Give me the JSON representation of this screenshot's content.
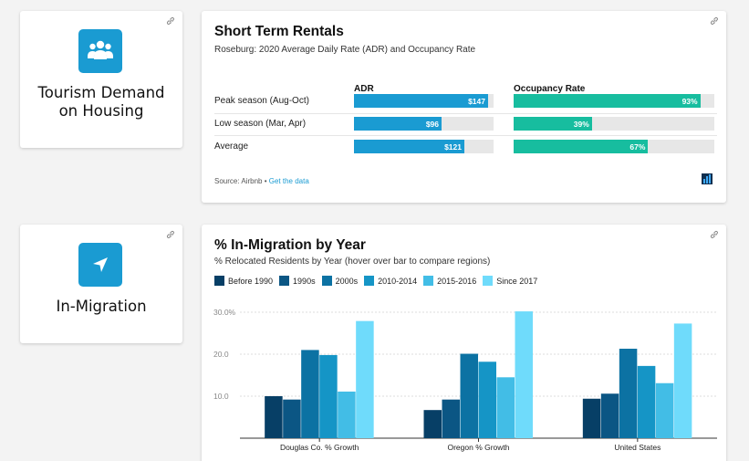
{
  "colors": {
    "adr": "#1a9bd2",
    "occupancy": "#17bd9f",
    "track": "#e7e7e7",
    "accent": "#1a9bd2"
  },
  "tiles": [
    {
      "icon": "users-icon",
      "title_line1": "Tourism Demand",
      "title_line2": "on Housing"
    },
    {
      "icon": "navigation-arrow-icon",
      "title": "In-Migration"
    }
  ],
  "rentals": {
    "title": "Short Term Rentals",
    "subtitle": "Roseburg: 2020 Average Daily Rate (ADR) and Occupancy Rate",
    "col_adr": "ADR",
    "col_occ": "Occupancy Rate",
    "rows": [
      {
        "label": "Peak season (Aug-Oct)",
        "adr": 147,
        "adr_label": "$147",
        "occ": 93,
        "occ_label": "93%"
      },
      {
        "label": "Low season (Mar, Apr)",
        "adr": 96,
        "adr_label": "$96",
        "occ": 39,
        "occ_label": "39%"
      },
      {
        "label": "Average",
        "adr": 121,
        "adr_label": "$121",
        "occ": 67,
        "occ_label": "67%"
      }
    ],
    "adr_max": 153,
    "occ_max": 100,
    "source_prefix": "Source: Airbnb • ",
    "source_link": "Get the data"
  },
  "migration": {
    "title": "% In-Migration by Year",
    "subtitle": "% Relocated Residents by Year (hover over bar to compare regions)"
  },
  "chart_data": {
    "type": "bar",
    "title": "% In-Migration by Year",
    "subtitle": "% Relocated Residents by Year (hover over bar to compare regions)",
    "categories": [
      "Douglas Co. % Growth",
      "Oregon % Growth",
      "United States"
    ],
    "series": [
      {
        "name": "Before 1990",
        "color": "#073f66",
        "values": [
          10.0,
          6.7,
          9.4
        ]
      },
      {
        "name": "1990s",
        "color": "#0b5684",
        "values": [
          9.2,
          9.2,
          10.6
        ]
      },
      {
        "name": "2000s",
        "color": "#0c72a3",
        "values": [
          21.0,
          20.1,
          21.3
        ]
      },
      {
        "name": "2010-2014",
        "color": "#1595c6",
        "values": [
          19.8,
          18.2,
          17.2
        ]
      },
      {
        "name": "2015-2016",
        "color": "#42bde6",
        "values": [
          11.1,
          14.5,
          13.1
        ]
      },
      {
        "name": "Since 2017",
        "color": "#6fdbfb",
        "values": [
          27.9,
          30.2,
          27.3
        ]
      }
    ],
    "ylim": [
      0,
      30
    ],
    "yticks": [
      10,
      20,
      30
    ],
    "ytick_labels": [
      "10.0",
      "20.0",
      "30.0%"
    ],
    "grid": true,
    "legend": "top-left"
  }
}
